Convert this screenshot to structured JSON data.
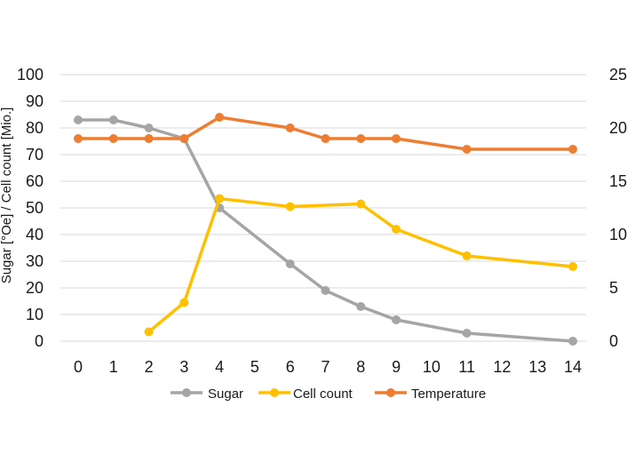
{
  "chart_data": {
    "type": "line",
    "x": [
      "0",
      "1",
      "2",
      "3",
      "4",
      "5",
      "6",
      "7",
      "8",
      "9",
      "10",
      "11",
      "12",
      "13",
      "14"
    ],
    "ylabel": "Sugar [°Oe] / Cell count [Mio.]",
    "ylim": [
      0,
      100
    ],
    "y_ticks": [
      "0",
      "10",
      "20",
      "30",
      "40",
      "50",
      "60",
      "70",
      "80",
      "90",
      "100"
    ],
    "y2lim": [
      0,
      25
    ],
    "y2_ticks": [
      "0",
      "5",
      "10",
      "15",
      "20",
      "25"
    ],
    "grid": true,
    "legend_position": "bottom",
    "series": [
      {
        "name": "Sugar",
        "axis": "left",
        "color": "#a5a5a5",
        "points": [
          [
            0,
            83
          ],
          [
            1,
            83
          ],
          [
            2,
            80
          ],
          [
            3,
            76
          ],
          [
            4,
            50
          ],
          [
            6,
            29
          ],
          [
            7,
            19
          ],
          [
            8,
            13
          ],
          [
            9,
            8
          ],
          [
            11,
            3
          ],
          [
            14,
            0
          ]
        ]
      },
      {
        "name": "Cell count",
        "axis": "left",
        "color": "#ffc000",
        "points": [
          [
            2,
            3.5
          ],
          [
            3,
            14.5
          ],
          [
            4,
            53.5
          ],
          [
            6,
            50.5
          ],
          [
            8,
            51.5
          ],
          [
            9,
            42
          ],
          [
            11,
            32
          ],
          [
            14,
            28
          ]
        ]
      },
      {
        "name": "Temperature",
        "axis": "right",
        "color": "#ed7d31",
        "points": [
          [
            0,
            19
          ],
          [
            1,
            19
          ],
          [
            2,
            19
          ],
          [
            3,
            19
          ],
          [
            4,
            21
          ],
          [
            6,
            20
          ],
          [
            7,
            19
          ],
          [
            8,
            19
          ],
          [
            9,
            19
          ],
          [
            11,
            18
          ],
          [
            14,
            18
          ]
        ]
      }
    ]
  }
}
